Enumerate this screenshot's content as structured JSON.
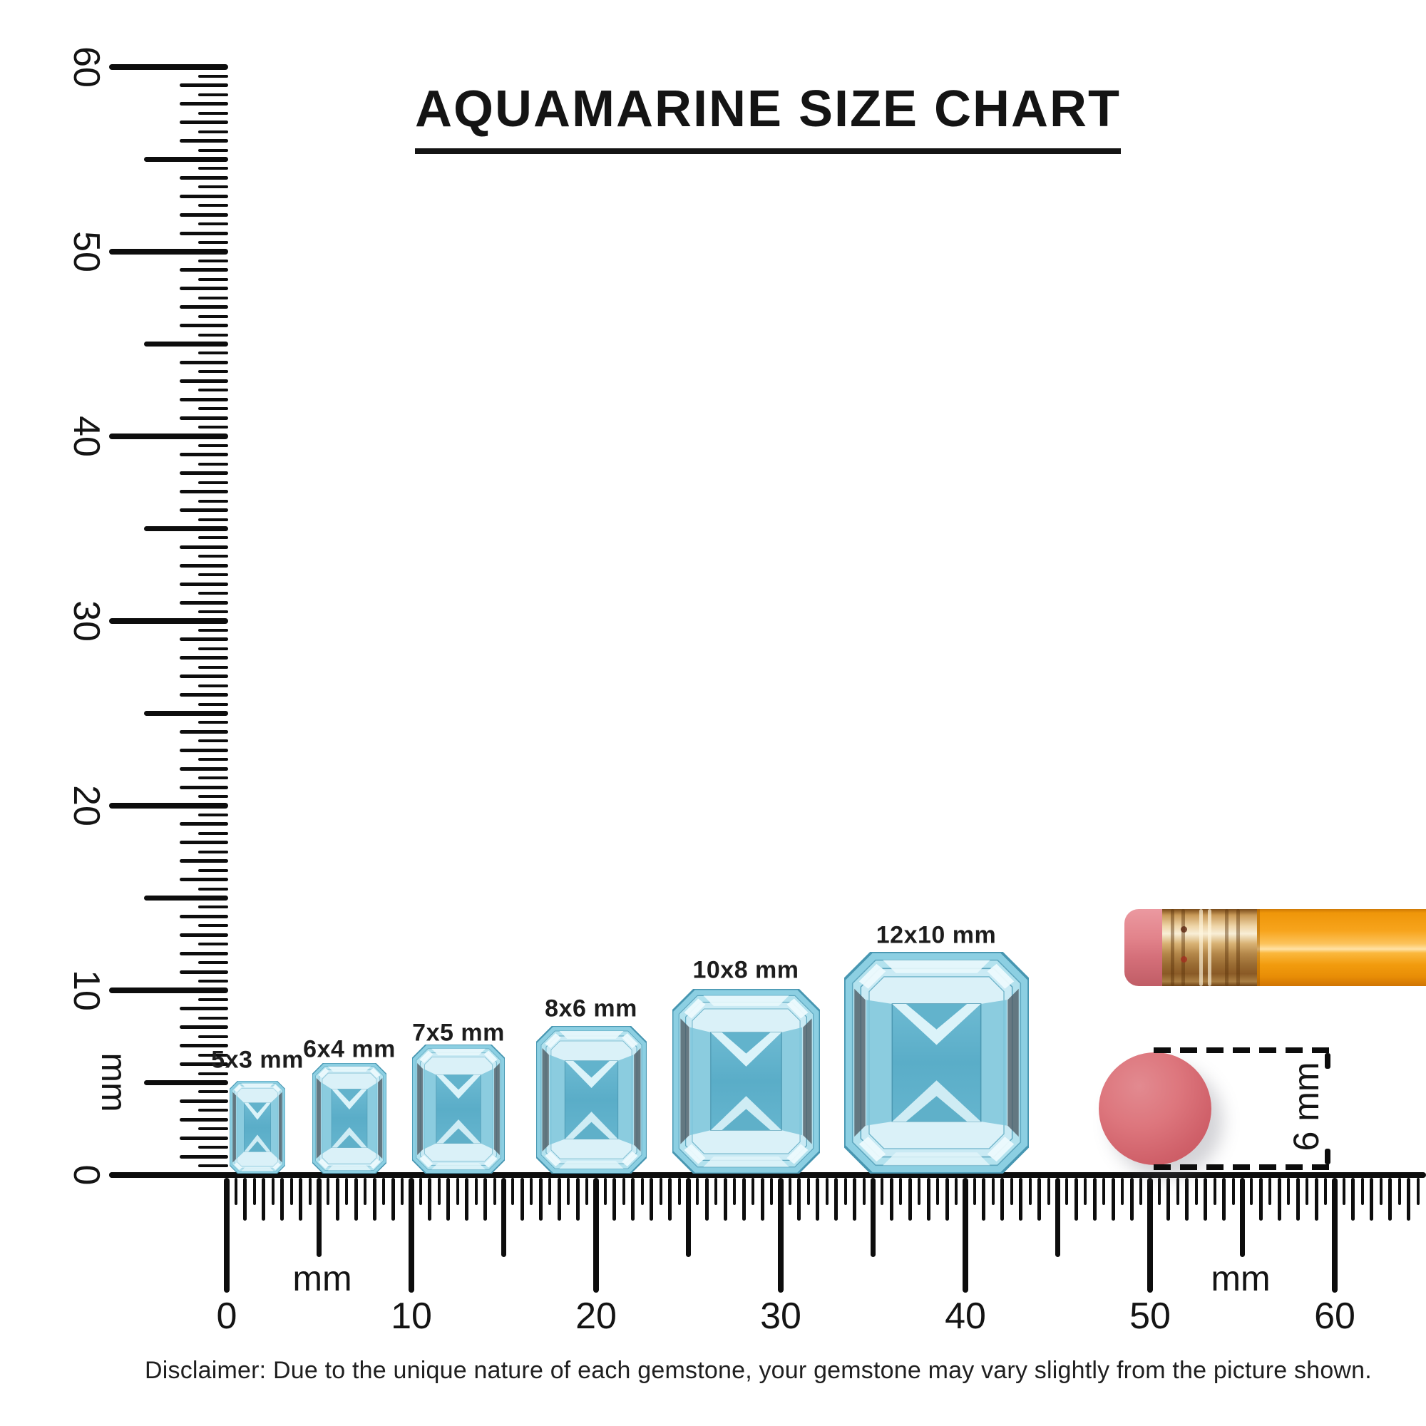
{
  "title": {
    "text": "AQUAMARINE SIZE CHART"
  },
  "disclaimer": {
    "text": "Disclaimer: Due to the unique nature of each gemstone, your gemstone may vary slightly from the picture shown."
  },
  "rulers": {
    "vertical": {
      "unit_label": "mm",
      "min": 0,
      "max": 60,
      "tick_labels": [
        "0",
        "10",
        "20",
        "30",
        "40",
        "50",
        "60"
      ]
    },
    "horizontal": {
      "unit_labels": [
        "mm",
        "mm"
      ],
      "min": 0,
      "max": 60,
      "tick_labels": [
        "0",
        "10",
        "20",
        "30",
        "40",
        "50",
        "60"
      ]
    }
  },
  "gems": {
    "items": [
      {
        "label": "5x3 mm",
        "length_mm": 5,
        "width_mm": 3
      },
      {
        "label": "6x4 mm",
        "length_mm": 6,
        "width_mm": 4
      },
      {
        "label": "7x5 mm",
        "length_mm": 7,
        "width_mm": 5
      },
      {
        "label": "8x6 mm",
        "length_mm": 8,
        "width_mm": 6
      },
      {
        "label": "10x8 mm",
        "length_mm": 10,
        "width_mm": 8
      },
      {
        "label": "12x10 mm",
        "length_mm": 12,
        "width_mm": 10
      }
    ]
  },
  "eraser": {
    "measure_label": "6 mm",
    "diameter_mm": 6
  },
  "colors": {
    "ink": "#0d0d0d",
    "gem_pale": "#e9f8fc",
    "gem_light": "#daf1f8",
    "gem_mid": "#8ccfe2",
    "gem_base": "#7cc6da",
    "gem_deep": "#5fb0c9",
    "gem_shadow": "#4d5a63",
    "gem_stroke": "#4796b1",
    "pencil_orange": "#f7a41c",
    "ferrule_gold": "#d8b273",
    "eraser_pink": "#d5707a",
    "eraser_circle": "#d0616a"
  }
}
